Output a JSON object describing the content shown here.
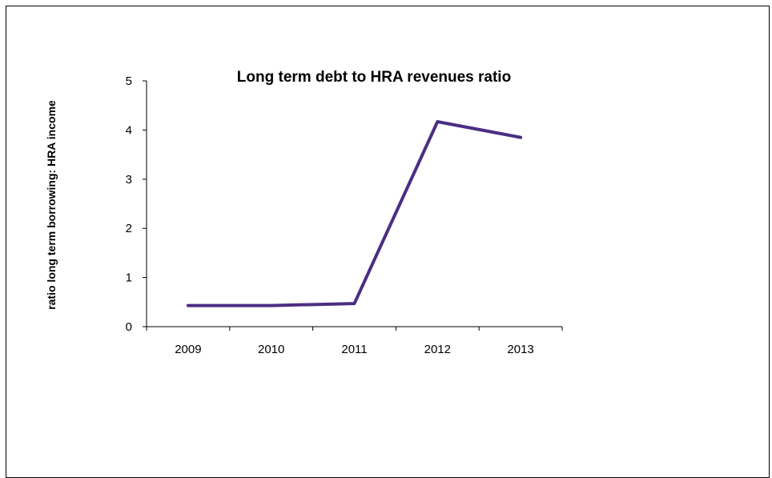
{
  "chart_data": {
    "type": "line",
    "title": "Long term debt to HRA revenues ratio",
    "xlabel": "",
    "ylabel": "ratio long term borrowing: HRA income",
    "categories": [
      "2009",
      "2010",
      "2011",
      "2012",
      "2013"
    ],
    "series": [
      {
        "values": [
          0.43,
          0.43,
          0.47,
          4.17,
          3.85
        ],
        "color": "#4b2e83"
      }
    ],
    "ylim": [
      0,
      5
    ],
    "yticks": [
      "0",
      "1",
      "2",
      "3",
      "4",
      "5"
    ],
    "grid": false,
    "legend": "none"
  }
}
